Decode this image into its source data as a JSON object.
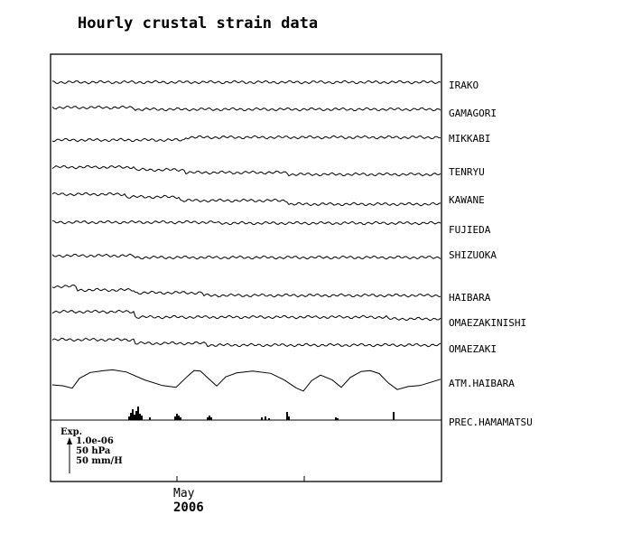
{
  "chart_data": {
    "type": "line",
    "title": "Hourly crustal strain data",
    "x_tick_labels": [
      "May"
    ],
    "x_year_label": "2006",
    "legend": {
      "title": "Exp.",
      "entries": [
        "1.0e-06",
        "50 hPa",
        "50 mm/H"
      ]
    },
    "series": [
      {
        "name": "IRAKO",
        "kind": "strain"
      },
      {
        "name": "GAMAGORI",
        "kind": "strain"
      },
      {
        "name": "MIKKABI",
        "kind": "strain"
      },
      {
        "name": "TENRYU",
        "kind": "strain"
      },
      {
        "name": "KAWANE",
        "kind": "strain"
      },
      {
        "name": "FUJIEDA",
        "kind": "strain"
      },
      {
        "name": "SHIZUOKA",
        "kind": "strain"
      },
      {
        "name": "HAIBARA",
        "kind": "strain"
      },
      {
        "name": "OMAEZAKINISHI",
        "kind": "strain"
      },
      {
        "name": "OMAEZAKI",
        "kind": "strain"
      },
      {
        "name": "ATM.HAIBARA",
        "kind": "pressure"
      },
      {
        "name": "PREC.HAMAMATSU",
        "kind": "precipitation"
      }
    ]
  }
}
